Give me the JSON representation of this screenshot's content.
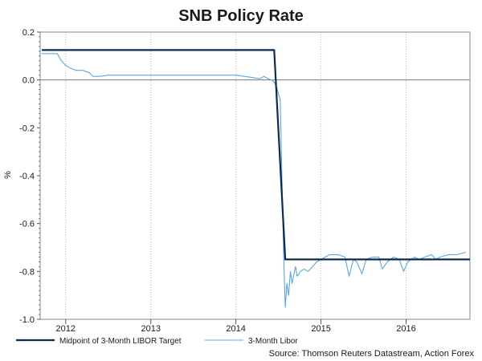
{
  "chart_data": {
    "type": "line",
    "title": "SNB Policy Rate",
    "ylabel": "%",
    "xlabel": "",
    "ylim": [
      -1.0,
      0.2
    ],
    "yticks": [
      0.2,
      0.0,
      -0.2,
      -0.4,
      -0.6,
      -0.8,
      -1.0
    ],
    "ytick_labels": [
      "0.2",
      "0.0",
      "-0.2",
      "-0.4",
      "-0.6",
      "-0.8",
      "-1.0"
    ],
    "xlim": [
      2011.7,
      2016.75
    ],
    "xticks": [
      {
        "label": "2012",
        "at": 2012.0
      },
      {
        "label": "2013",
        "at": 2013.0
      },
      {
        "label": "2014",
        "at": 2014.0
      },
      {
        "label": "2015",
        "at": 2015.0
      },
      {
        "label": "2016",
        "at": 2016.0
      }
    ],
    "grid": "vertical-dotted",
    "legend_position": "bottom-left",
    "source": "Source: Thomson Reuters Datastream, Action Forex",
    "series": [
      {
        "name": "Midpoint of 3-Month LIBOR Target",
        "color": "#0d2b52",
        "x": [
          2011.72,
          2014.45,
          2014.58,
          2016.75
        ],
        "y": [
          0.125,
          0.125,
          -0.75,
          -0.75
        ]
      },
      {
        "name": "3-Month Libor",
        "color": "#5aa7e6",
        "x": [
          2011.72,
          2011.9,
          2011.95,
          2012.0,
          2012.05,
          2012.12,
          2012.2,
          2012.28,
          2012.32,
          2012.4,
          2012.5,
          2012.6,
          2012.75,
          2012.9,
          2013.0,
          2013.2,
          2013.4,
          2013.6,
          2013.8,
          2014.0,
          2014.1,
          2014.2,
          2014.28,
          2014.33,
          2014.38,
          2014.42,
          2014.45,
          2014.48,
          2014.5,
          2014.52,
          2014.54,
          2014.56,
          2014.58,
          2014.6,
          2014.62,
          2014.64,
          2014.66,
          2014.7,
          2014.72,
          2014.76,
          2014.8,
          2014.85,
          2014.9,
          2014.95,
          2015.0,
          2015.05,
          2015.1,
          2015.2,
          2015.28,
          2015.33,
          2015.38,
          2015.42,
          2015.48,
          2015.53,
          2015.6,
          2015.68,
          2015.72,
          2015.78,
          2015.85,
          2015.92,
          2015.97,
          2016.02,
          2016.06,
          2016.1,
          2016.15,
          2016.22,
          2016.3,
          2016.35,
          2016.4,
          2016.5,
          2016.6,
          2016.7
        ],
        "y": [
          0.11,
          0.11,
          0.08,
          0.06,
          0.05,
          0.04,
          0.04,
          0.03,
          0.015,
          0.015,
          0.02,
          0.02,
          0.02,
          0.02,
          0.02,
          0.02,
          0.02,
          0.02,
          0.02,
          0.02,
          0.015,
          0.01,
          0.005,
          0.015,
          0.005,
          0.0,
          -0.01,
          -0.03,
          -0.06,
          -0.08,
          -0.4,
          -0.72,
          -0.95,
          -0.85,
          -0.9,
          -0.8,
          -0.85,
          -0.78,
          -0.82,
          -0.8,
          -0.79,
          -0.8,
          -0.78,
          -0.76,
          -0.75,
          -0.74,
          -0.73,
          -0.73,
          -0.74,
          -0.82,
          -0.75,
          -0.76,
          -0.81,
          -0.75,
          -0.74,
          -0.74,
          -0.79,
          -0.76,
          -0.74,
          -0.75,
          -0.8,
          -0.76,
          -0.75,
          -0.74,
          -0.75,
          -0.74,
          -0.73,
          -0.75,
          -0.74,
          -0.73,
          -0.73,
          -0.72
        ]
      }
    ]
  }
}
